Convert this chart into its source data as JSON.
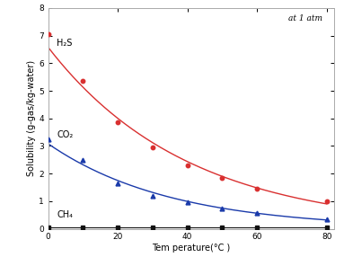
{
  "H2S_x": [
    0,
    10,
    20,
    30,
    40,
    50,
    60,
    80
  ],
  "H2S_y": [
    7.05,
    5.35,
    3.85,
    2.95,
    2.3,
    1.85,
    1.45,
    0.98
  ],
  "CO2_x": [
    0,
    10,
    20,
    30,
    40,
    50,
    60,
    80
  ],
  "CO2_y": [
    3.25,
    2.48,
    1.65,
    1.2,
    0.95,
    0.75,
    0.58,
    0.33
  ],
  "CH4_x": [
    0,
    10,
    20,
    30,
    40,
    50,
    60,
    80
  ],
  "CH4_y": [
    0.05,
    0.05,
    0.05,
    0.05,
    0.05,
    0.05,
    0.05,
    0.05
  ],
  "H2S_color": "#d93030",
  "CO2_color": "#1a3aaa",
  "CH4_color": "#111111",
  "xlabel": "Tem perature(°C )",
  "ylabel": "Solubility (g-gas/kg-water)",
  "annotation": "at 1 atm",
  "H2S_label": "H₂S",
  "CO2_label": "CO₂",
  "CH4_label": "CH₄",
  "xlim": [
    0,
    82
  ],
  "ylim": [
    0,
    8
  ],
  "yticks": [
    0,
    1,
    2,
    3,
    4,
    5,
    6,
    7,
    8
  ],
  "xticks": [
    0,
    20,
    40,
    60,
    80
  ],
  "label_fontsize": 7,
  "tick_fontsize": 6.5,
  "annot_fontsize": 6.5,
  "text_label_fontsize": 7
}
